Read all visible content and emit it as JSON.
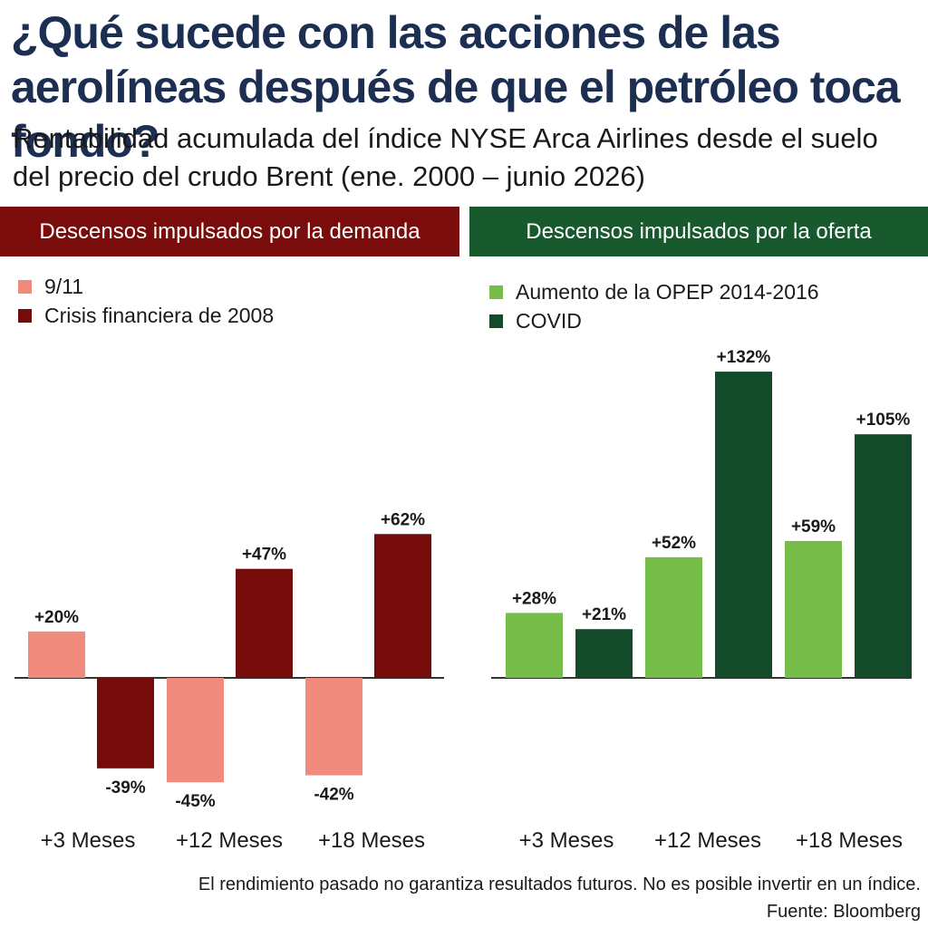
{
  "title": "¿Qué sucede con las acciones de las aerolíneas después de que el petróleo toca fondo?",
  "subtitle": "Rentabilidad acumulada del índice NYSE Arca Airlines desde el suelo del precio del crudo Brent (ene. 2000 – junio 2026)",
  "footnote": "El rendimiento pasado no garantiza resultados futuros. No es posible invertir en un índice.",
  "source": "Fuente: Bloomberg",
  "colors": {
    "title": "#1c2f52",
    "demand_header": "#7a0c0c",
    "supply_header": "#185a2e",
    "nine_eleven": "#f08a7c",
    "crisis_2008": "#750b0b",
    "opep": "#76bd4a",
    "covid": "#124a2a"
  },
  "chart_data": [
    {
      "type": "bar",
      "title": "Descensos impulsados por la demanda",
      "categories": [
        "+3 Meses",
        "+12 Meses",
        "+18 Meses"
      ],
      "series": [
        {
          "name": "9/11",
          "values": [
            20,
            -45,
            -42
          ],
          "labels": [
            "+20%",
            "-45%",
            "-42%"
          ],
          "color": "#f08a7c"
        },
        {
          "name": "Crisis financiera de 2008",
          "values": [
            -39,
            47,
            62
          ],
          "labels": [
            "-39%",
            "+47%",
            "+62%"
          ],
          "color": "#750b0b"
        }
      ],
      "unit": "%",
      "legend": "top-left"
    },
    {
      "type": "bar",
      "title": "Descensos impulsados por la oferta",
      "categories": [
        "+3 Meses",
        "+12 Meses",
        "+18 Meses"
      ],
      "series": [
        {
          "name": "Aumento de la OPEP 2014-2016",
          "values": [
            28,
            52,
            59
          ],
          "labels": [
            "+28%",
            "+52%",
            "+59%"
          ],
          "color": "#76bd4a"
        },
        {
          "name": "COVID",
          "values": [
            21,
            132,
            105
          ],
          "labels": [
            "+21%",
            "+132%",
            "+105%"
          ],
          "color": "#124a2a"
        }
      ],
      "unit": "%",
      "legend": "top-left"
    }
  ]
}
